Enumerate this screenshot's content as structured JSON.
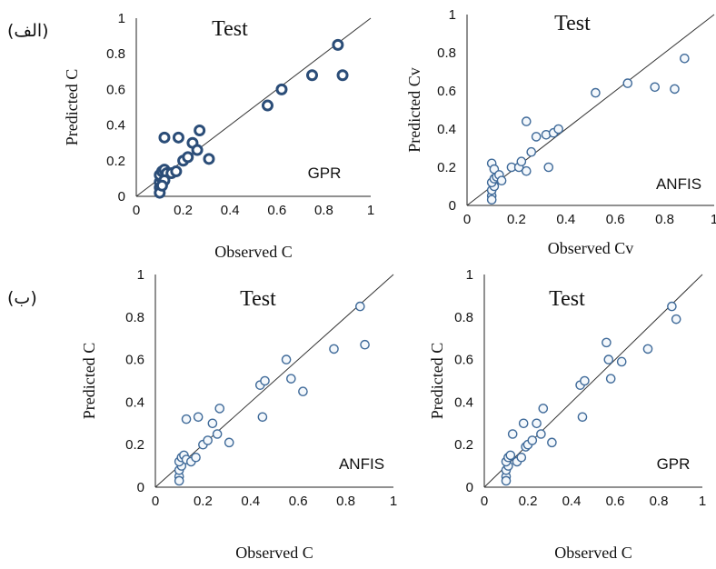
{
  "panel_labels": [
    "(الف)",
    "(ب)"
  ],
  "chart_data": [
    {
      "type": "scatter",
      "title": "Test",
      "model_label": "GPR",
      "xlabel": "Observed C",
      "ylabel": "Predicted C",
      "xlim": [
        0,
        1
      ],
      "ylim": [
        0,
        1
      ],
      "xticks": [
        "0",
        "0.2",
        "0.4",
        "0.6",
        "0.8",
        "1"
      ],
      "yticks": [
        "0",
        "0.2",
        "0.4",
        "0.6",
        "0.8",
        "1"
      ],
      "marker_style": "bold",
      "reference_line": "y = x",
      "points": [
        [
          0.1,
          0.05
        ],
        [
          0.1,
          0.08
        ],
        [
          0.11,
          0.1
        ],
        [
          0.1,
          0.12
        ],
        [
          0.11,
          0.14
        ],
        [
          0.12,
          0.15
        ],
        [
          0.13,
          0.13
        ],
        [
          0.12,
          0.33
        ],
        [
          0.18,
          0.33
        ],
        [
          0.12,
          0.09
        ],
        [
          0.15,
          0.13
        ],
        [
          0.17,
          0.14
        ],
        [
          0.2,
          0.2
        ],
        [
          0.22,
          0.22
        ],
        [
          0.24,
          0.3
        ],
        [
          0.27,
          0.37
        ],
        [
          0.26,
          0.26
        ],
        [
          0.31,
          0.21
        ],
        [
          0.56,
          0.51
        ],
        [
          0.62,
          0.6
        ],
        [
          0.75,
          0.68
        ],
        [
          0.86,
          0.85
        ],
        [
          0.88,
          0.68
        ],
        [
          0.1,
          0.02
        ],
        [
          0.11,
          0.06
        ]
      ]
    },
    {
      "type": "scatter",
      "title": "Test",
      "model_label": "ANFIS",
      "xlabel": "Observed Cv",
      "ylabel": "Predicted Cv",
      "xlim": [
        0,
        1
      ],
      "ylim": [
        0,
        1
      ],
      "xticks": [
        "0",
        "0.2",
        "0.4",
        "0.6",
        "0.8",
        "1"
      ],
      "yticks": [
        "0",
        "0.2",
        "0.4",
        "0.6",
        "0.8",
        "1"
      ],
      "marker_style": "light",
      "reference_line": "y = x",
      "points": [
        [
          0.1,
          0.05
        ],
        [
          0.1,
          0.08
        ],
        [
          0.11,
          0.1
        ],
        [
          0.1,
          0.12
        ],
        [
          0.11,
          0.14
        ],
        [
          0.12,
          0.15
        ],
        [
          0.1,
          0.22
        ],
        [
          0.11,
          0.19
        ],
        [
          0.13,
          0.16
        ],
        [
          0.14,
          0.13
        ],
        [
          0.18,
          0.2
        ],
        [
          0.21,
          0.2
        ],
        [
          0.22,
          0.23
        ],
        [
          0.24,
          0.18
        ],
        [
          0.24,
          0.44
        ],
        [
          0.26,
          0.28
        ],
        [
          0.28,
          0.36
        ],
        [
          0.32,
          0.37
        ],
        [
          0.35,
          0.38
        ],
        [
          0.37,
          0.4
        ],
        [
          0.33,
          0.2
        ],
        [
          0.52,
          0.59
        ],
        [
          0.65,
          0.64
        ],
        [
          0.76,
          0.62
        ],
        [
          0.84,
          0.61
        ],
        [
          0.88,
          0.77
        ],
        [
          0.1,
          0.03
        ]
      ]
    },
    {
      "type": "scatter",
      "title": "Test",
      "model_label": "ANFIS",
      "xlabel": "Observed C",
      "ylabel": "Predicted C",
      "xlim": [
        0,
        1
      ],
      "ylim": [
        0,
        1
      ],
      "xticks": [
        "0",
        "0.2",
        "0.4",
        "0.6",
        "0.8",
        "1"
      ],
      "yticks": [
        "0",
        "0.2",
        "0.4",
        "0.6",
        "0.8",
        "1"
      ],
      "marker_style": "light",
      "reference_line": "y = x",
      "points": [
        [
          0.1,
          0.05
        ],
        [
          0.1,
          0.08
        ],
        [
          0.11,
          0.1
        ],
        [
          0.1,
          0.12
        ],
        [
          0.11,
          0.14
        ],
        [
          0.12,
          0.15
        ],
        [
          0.13,
          0.13
        ],
        [
          0.13,
          0.32
        ],
        [
          0.18,
          0.33
        ],
        [
          0.15,
          0.12
        ],
        [
          0.17,
          0.14
        ],
        [
          0.2,
          0.2
        ],
        [
          0.22,
          0.22
        ],
        [
          0.24,
          0.3
        ],
        [
          0.27,
          0.37
        ],
        [
          0.26,
          0.25
        ],
        [
          0.31,
          0.21
        ],
        [
          0.44,
          0.48
        ],
        [
          0.45,
          0.33
        ],
        [
          0.46,
          0.5
        ],
        [
          0.55,
          0.6
        ],
        [
          0.57,
          0.51
        ],
        [
          0.62,
          0.45
        ],
        [
          0.75,
          0.65
        ],
        [
          0.86,
          0.85
        ],
        [
          0.88,
          0.67
        ],
        [
          0.1,
          0.03
        ]
      ]
    },
    {
      "type": "scatter",
      "title": "Test",
      "model_label": "GPR",
      "xlabel": "Observed C",
      "ylabel": "Predicted C",
      "xlim": [
        0,
        1
      ],
      "ylim": [
        0,
        1
      ],
      "xticks": [
        "0",
        "0.2",
        "0.4",
        "0.6",
        "0.8",
        "1"
      ],
      "yticks": [
        "0",
        "0.2",
        "0.4",
        "0.6",
        "0.8",
        "1"
      ],
      "marker_style": "light",
      "reference_line": "y = x",
      "points": [
        [
          0.1,
          0.05
        ],
        [
          0.1,
          0.08
        ],
        [
          0.11,
          0.1
        ],
        [
          0.1,
          0.12
        ],
        [
          0.11,
          0.14
        ],
        [
          0.12,
          0.15
        ],
        [
          0.13,
          0.25
        ],
        [
          0.15,
          0.12
        ],
        [
          0.17,
          0.14
        ],
        [
          0.18,
          0.3
        ],
        [
          0.19,
          0.19
        ],
        [
          0.2,
          0.2
        ],
        [
          0.22,
          0.22
        ],
        [
          0.24,
          0.3
        ],
        [
          0.27,
          0.37
        ],
        [
          0.26,
          0.25
        ],
        [
          0.31,
          0.21
        ],
        [
          0.45,
          0.33
        ],
        [
          0.44,
          0.48
        ],
        [
          0.46,
          0.5
        ],
        [
          0.56,
          0.68
        ],
        [
          0.57,
          0.6
        ],
        [
          0.58,
          0.51
        ],
        [
          0.63,
          0.59
        ],
        [
          0.75,
          0.65
        ],
        [
          0.86,
          0.85
        ],
        [
          0.88,
          0.79
        ],
        [
          0.1,
          0.03
        ]
      ]
    }
  ]
}
